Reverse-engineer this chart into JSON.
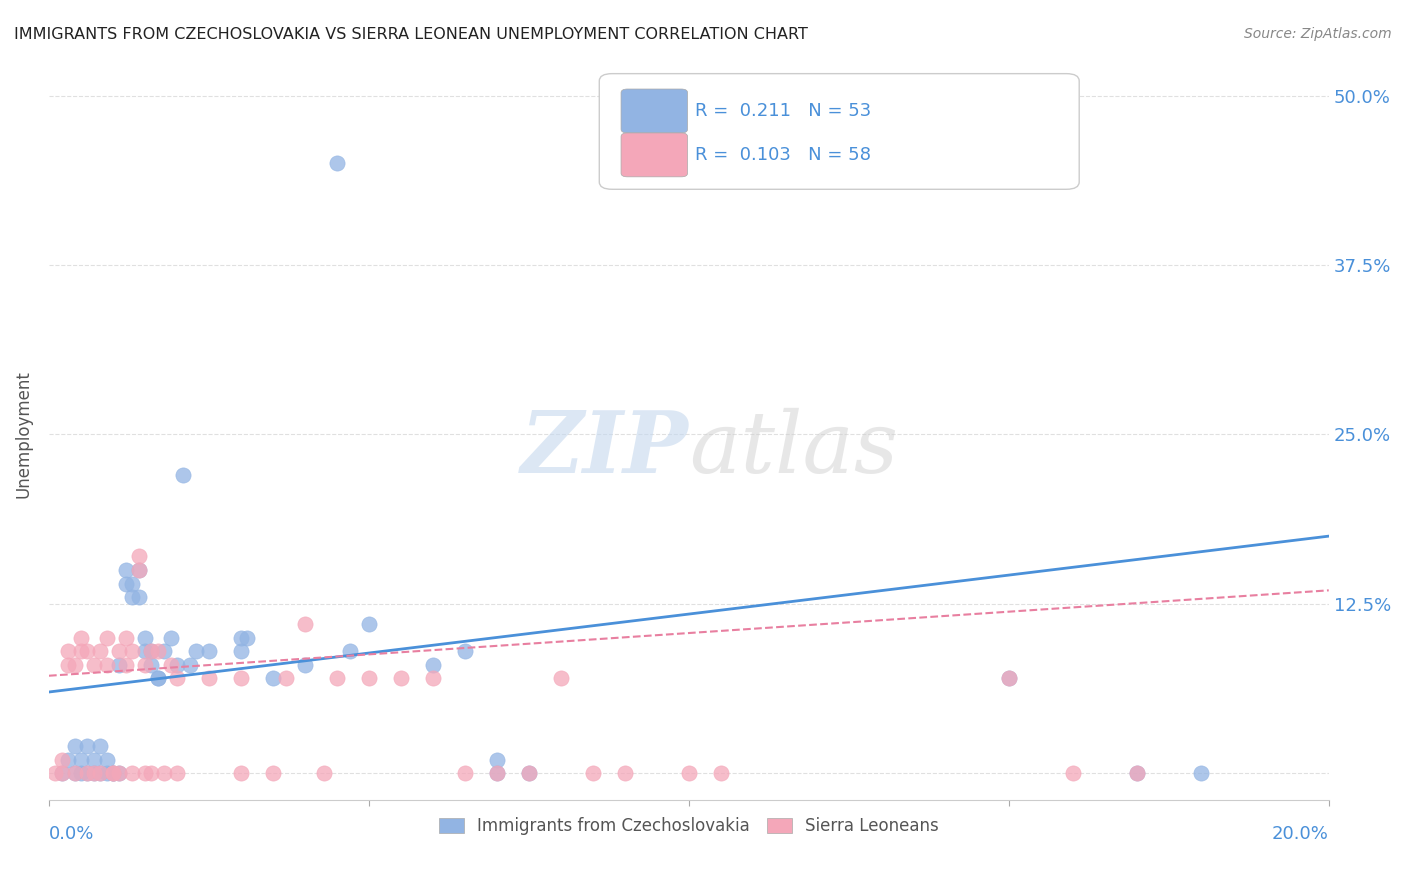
{
  "title": "IMMIGRANTS FROM CZECHOSLOVAKIA VS SIERRA LEONEAN UNEMPLOYMENT CORRELATION CHART",
  "source": "Source: ZipAtlas.com",
  "ylabel": "Unemployment",
  "xlim": [
    0.0,
    0.2
  ],
  "ylim": [
    -0.02,
    0.52
  ],
  "yticks": [
    0.0,
    0.125,
    0.25,
    0.375,
    0.5
  ],
  "ytick_labels": [
    "",
    "12.5%",
    "25.0%",
    "37.5%",
    "50.0%"
  ],
  "xticks": [
    0.0,
    0.05,
    0.1,
    0.15,
    0.2
  ],
  "blue_R": 0.211,
  "blue_N": 53,
  "pink_R": 0.103,
  "pink_N": 58,
  "blue_color": "#92b4e3",
  "pink_color": "#f4a7b9",
  "blue_line_color": "#4a90d9",
  "pink_line_color": "#e87fa0",
  "watermark_zip": "ZIP",
  "watermark_atlas": "atlas",
  "background_color": "#ffffff",
  "grid_color": "#e0e0e0",
  "title_color": "#222222",
  "axis_color": "#4a90d9",
  "blue_scatter": [
    [
      0.002,
      0.0
    ],
    [
      0.003,
      0.01
    ],
    [
      0.004,
      0.0
    ],
    [
      0.004,
      0.02
    ],
    [
      0.005,
      0.0
    ],
    [
      0.005,
      0.01
    ],
    [
      0.006,
      0.0
    ],
    [
      0.006,
      0.02
    ],
    [
      0.007,
      0.0
    ],
    [
      0.007,
      0.01
    ],
    [
      0.008,
      0.0
    ],
    [
      0.008,
      0.02
    ],
    [
      0.009,
      0.0
    ],
    [
      0.009,
      0.01
    ],
    [
      0.01,
      0.0
    ],
    [
      0.01,
      0.0
    ],
    [
      0.011,
      0.0
    ],
    [
      0.011,
      0.08
    ],
    [
      0.012,
      0.14
    ],
    [
      0.012,
      0.15
    ],
    [
      0.013,
      0.14
    ],
    [
      0.013,
      0.13
    ],
    [
      0.014,
      0.15
    ],
    [
      0.014,
      0.13
    ],
    [
      0.015,
      0.09
    ],
    [
      0.015,
      0.1
    ],
    [
      0.016,
      0.09
    ],
    [
      0.016,
      0.08
    ],
    [
      0.017,
      0.07
    ],
    [
      0.017,
      0.07
    ],
    [
      0.018,
      0.09
    ],
    [
      0.019,
      0.1
    ],
    [
      0.02,
      0.08
    ],
    [
      0.021,
      0.22
    ],
    [
      0.022,
      0.08
    ],
    [
      0.023,
      0.09
    ],
    [
      0.025,
      0.09
    ],
    [
      0.03,
      0.09
    ],
    [
      0.03,
      0.1
    ],
    [
      0.031,
      0.1
    ],
    [
      0.035,
      0.07
    ],
    [
      0.04,
      0.08
    ],
    [
      0.045,
      0.45
    ],
    [
      0.047,
      0.09
    ],
    [
      0.05,
      0.11
    ],
    [
      0.06,
      0.08
    ],
    [
      0.065,
      0.09
    ],
    [
      0.07,
      0.0
    ],
    [
      0.07,
      0.01
    ],
    [
      0.075,
      0.0
    ],
    [
      0.15,
      0.07
    ],
    [
      0.17,
      0.0
    ],
    [
      0.18,
      0.0
    ]
  ],
  "pink_scatter": [
    [
      0.001,
      0.0
    ],
    [
      0.002,
      0.0
    ],
    [
      0.002,
      0.01
    ],
    [
      0.003,
      0.08
    ],
    [
      0.003,
      0.09
    ],
    [
      0.004,
      0.0
    ],
    [
      0.004,
      0.08
    ],
    [
      0.005,
      0.09
    ],
    [
      0.005,
      0.1
    ],
    [
      0.006,
      0.0
    ],
    [
      0.006,
      0.09
    ],
    [
      0.007,
      0.0
    ],
    [
      0.007,
      0.08
    ],
    [
      0.008,
      0.0
    ],
    [
      0.008,
      0.09
    ],
    [
      0.009,
      0.1
    ],
    [
      0.009,
      0.08
    ],
    [
      0.01,
      0.0
    ],
    [
      0.01,
      0.0
    ],
    [
      0.011,
      0.09
    ],
    [
      0.011,
      0.0
    ],
    [
      0.012,
      0.08
    ],
    [
      0.012,
      0.1
    ],
    [
      0.013,
      0.0
    ],
    [
      0.013,
      0.09
    ],
    [
      0.014,
      0.15
    ],
    [
      0.014,
      0.16
    ],
    [
      0.015,
      0.0
    ],
    [
      0.015,
      0.08
    ],
    [
      0.016,
      0.0
    ],
    [
      0.016,
      0.09
    ],
    [
      0.017,
      0.09
    ],
    [
      0.018,
      0.0
    ],
    [
      0.019,
      0.08
    ],
    [
      0.02,
      0.0
    ],
    [
      0.02,
      0.07
    ],
    [
      0.025,
      0.07
    ],
    [
      0.03,
      0.07
    ],
    [
      0.03,
      0.0
    ],
    [
      0.035,
      0.0
    ],
    [
      0.037,
      0.07
    ],
    [
      0.04,
      0.11
    ],
    [
      0.043,
      0.0
    ],
    [
      0.045,
      0.07
    ],
    [
      0.05,
      0.07
    ],
    [
      0.055,
      0.07
    ],
    [
      0.06,
      0.07
    ],
    [
      0.065,
      0.0
    ],
    [
      0.07,
      0.0
    ],
    [
      0.075,
      0.0
    ],
    [
      0.08,
      0.07
    ],
    [
      0.085,
      0.0
    ],
    [
      0.09,
      0.0
    ],
    [
      0.1,
      0.0
    ],
    [
      0.105,
      0.0
    ],
    [
      0.15,
      0.07
    ],
    [
      0.16,
      0.0
    ],
    [
      0.17,
      0.0
    ]
  ],
  "blue_line_x": [
    0.0,
    0.2
  ],
  "blue_line_y": [
    0.06,
    0.175
  ],
  "pink_line_x": [
    0.0,
    0.2
  ],
  "pink_line_y": [
    0.072,
    0.135
  ],
  "legend_label_blue": "Immigrants from Czechoslovakia",
  "legend_label_pink": "Sierra Leoneans"
}
